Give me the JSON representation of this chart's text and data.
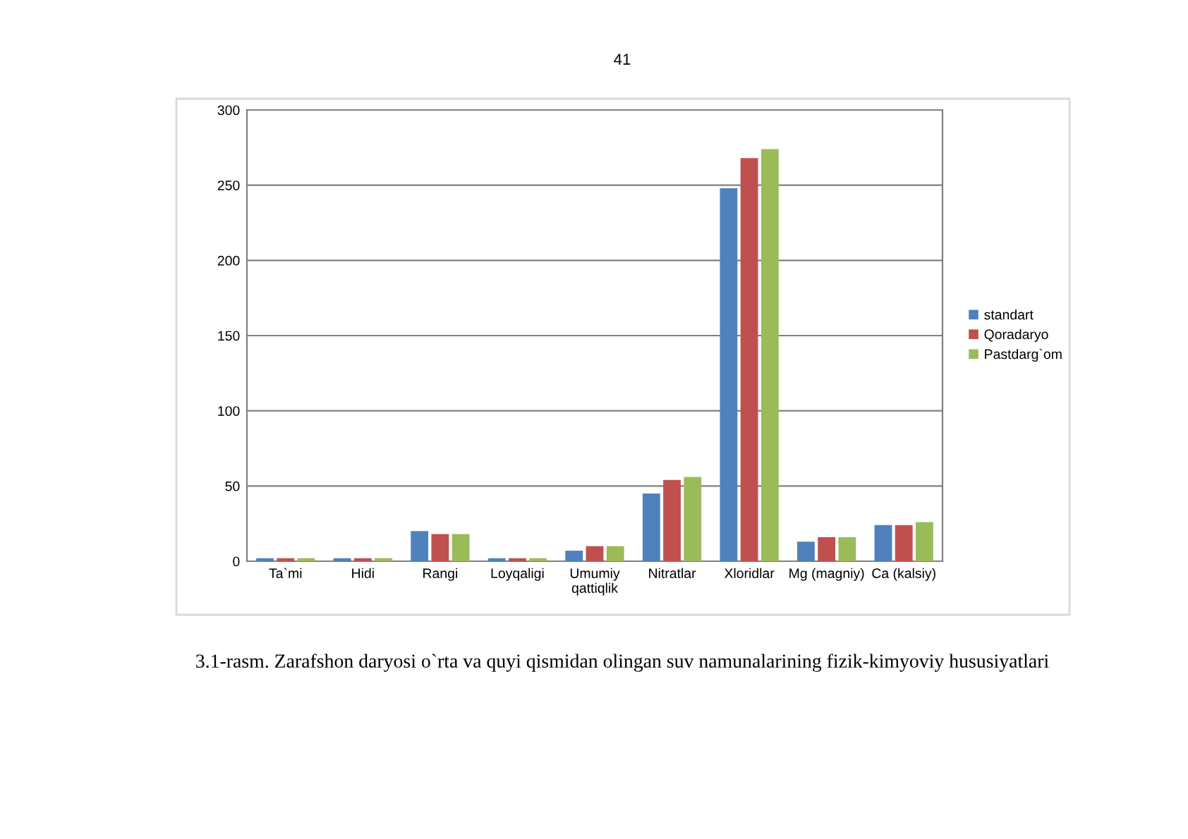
{
  "chart_data": {
    "type": "bar",
    "categories": [
      "Ta`mi",
      "Hidi",
      "Rangi",
      "Loyqaligi",
      "Umumiy\nqattiqlik",
      "Nitratlar",
      "Xloridlar",
      "Mg (magniy)",
      "Ca (kalsiy)"
    ],
    "series": [
      {
        "name": "standart",
        "color": "#4f81bd",
        "values": [
          2,
          2,
          20,
          2,
          7,
          45,
          248,
          13,
          24
        ]
      },
      {
        "name": "Qoradaryo",
        "color": "#c0504d",
        "values": [
          2,
          2,
          18,
          2,
          10,
          54,
          268,
          16,
          24
        ]
      },
      {
        "name": "Pastdarg`om",
        "color": "#9bbb59",
        "values": [
          2,
          2,
          18,
          2,
          10,
          56,
          274,
          16,
          26
        ]
      }
    ],
    "ylim": [
      0,
      300
    ],
    "yticks": [
      0,
      50,
      100,
      150,
      200,
      250,
      300
    ],
    "grid": "y",
    "legend": "right",
    "annotations": [
      "41",
      "3.1-rasm. Zarafshon daryosi o`rta va quyi qismidan olingan suv namunalarining fizik-kimyoviy hususiyatlari"
    ]
  }
}
